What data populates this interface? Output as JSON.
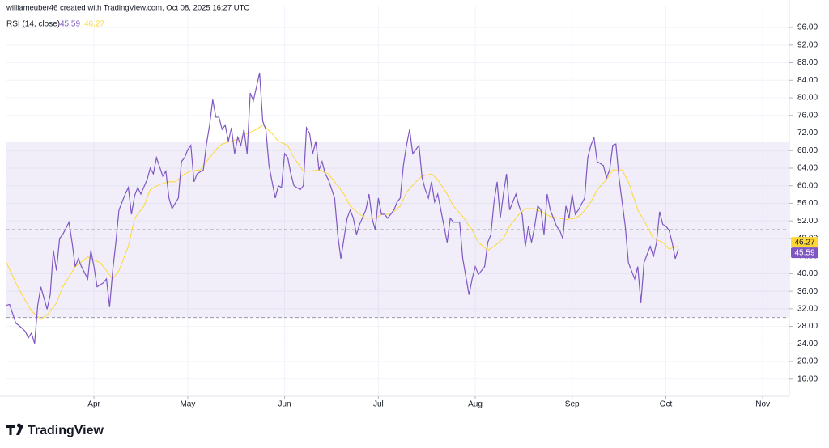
{
  "credit": "williameuber46 created with TradingView.com, Oct 08, 2025 16:27 UTC",
  "logo": "TradingView",
  "chart_data": {
    "type": "line",
    "xlim": [
      63,
      313.5
    ],
    "xticks": [
      {
        "value": 91,
        "label": "Apr"
      },
      {
        "value": 121,
        "label": "May"
      },
      {
        "value": 152,
        "label": "Jun"
      },
      {
        "value": 182,
        "label": "Jul"
      },
      {
        "value": 213,
        "label": "Aug"
      },
      {
        "value": 244,
        "label": "Sep"
      },
      {
        "value": 274,
        "label": "Oct"
      },
      {
        "value": 305,
        "label": "Nov"
      }
    ],
    "ylim": [
      12.1,
      100.8
    ],
    "yticks": [
      {
        "value": 16,
        "label": "16.00"
      },
      {
        "value": 20,
        "label": "20.00"
      },
      {
        "value": 24,
        "label": "24.00"
      },
      {
        "value": 28,
        "label": "28.00"
      },
      {
        "value": 32,
        "label": "32.00"
      },
      {
        "value": 36,
        "label": "36.00"
      },
      {
        "value": 40,
        "label": "40.00"
      },
      {
        "value": 44,
        "label": "44.00"
      },
      {
        "value": 48,
        "label": "48.00"
      },
      {
        "value": 52,
        "label": "52.00"
      },
      {
        "value": 56,
        "label": "56.00"
      },
      {
        "value": 60,
        "label": "60.00"
      },
      {
        "value": 64,
        "label": "64.00"
      },
      {
        "value": 68,
        "label": "68.00"
      },
      {
        "value": 72,
        "label": "72.00"
      },
      {
        "value": 76,
        "label": "76.00"
      },
      {
        "value": 80,
        "label": "80.00"
      },
      {
        "value": 84,
        "label": "84.00"
      },
      {
        "value": 88,
        "label": "88.00"
      },
      {
        "value": 92,
        "label": "92.00"
      },
      {
        "value": 96,
        "label": "96.00"
      }
    ],
    "grid": true,
    "hlines": [
      70,
      50,
      30
    ],
    "band_color": "rgba(126,87,194,0.1)",
    "series": [
      {
        "name": "RSI (14, close)",
        "color": "#7e57c2",
        "x": [
          63,
          64,
          66,
          67,
          69,
          70,
          71,
          72,
          73,
          74,
          76,
          77,
          78,
          79,
          80,
          81,
          83,
          84,
          85,
          86,
          87,
          89,
          90,
          91,
          92,
          94,
          95,
          96,
          97,
          98,
          99,
          101,
          102,
          103,
          104,
          105,
          106,
          108,
          109,
          110,
          111,
          113,
          114,
          115,
          116,
          118,
          119,
          120,
          121,
          122,
          123,
          124,
          126,
          127,
          128,
          129,
          130,
          131,
          132,
          133,
          134,
          135,
          136,
          137,
          138,
          139,
          140,
          141,
          142,
          144,
          145,
          146,
          147,
          149,
          150,
          151,
          152,
          153,
          154,
          155,
          157,
          158,
          159,
          160,
          161,
          162,
          163,
          164,
          165,
          166,
          168,
          169,
          170,
          171,
          172,
          173,
          174,
          175,
          176,
          178,
          179,
          180,
          181,
          182,
          183,
          184,
          185,
          187,
          188,
          189,
          190,
          191,
          192,
          193,
          195,
          196,
          197,
          198,
          199,
          200,
          201,
          203,
          204,
          205,
          206,
          207,
          208,
          209,
          211,
          212,
          213,
          214,
          216,
          217,
          218,
          219,
          220,
          221,
          222,
          223,
          224,
          226,
          227,
          228,
          229,
          230,
          231,
          232,
          233,
          234,
          235,
          236,
          237,
          239,
          240,
          241,
          242,
          243,
          244,
          245,
          246,
          248,
          249,
          250,
          251,
          252,
          254,
          255,
          256,
          257,
          258,
          259,
          261,
          262,
          264,
          265,
          266,
          267,
          268,
          269,
          270,
          271,
          272,
          273,
          274,
          275,
          276,
          277,
          278
        ],
        "values": [
          32.8,
          33.0,
          28.7,
          28.2,
          26.9,
          25.4,
          26.5,
          24.1,
          32.8,
          37.0,
          31.9,
          35.2,
          45.3,
          40.7,
          48.0,
          48.9,
          51.7,
          47.1,
          41.6,
          43.4,
          41.6,
          38.8,
          45.3,
          41.6,
          37.0,
          37.9,
          38.8,
          32.4,
          40.7,
          47.1,
          54.5,
          58.1,
          59.6,
          53.5,
          57.7,
          59.6,
          58.1,
          61.4,
          64.0,
          62.7,
          66.4,
          62.2,
          63.3,
          57.2,
          54.8,
          57.2,
          65.5,
          66.4,
          68.2,
          69.2,
          60.9,
          62.7,
          63.6,
          69.5,
          73.8,
          79.6,
          75.6,
          75.6,
          72.8,
          73.8,
          70.1,
          73.2,
          67.3,
          71.0,
          69.2,
          72.8,
          67.3,
          81.1,
          79.3,
          85.7,
          74.7,
          72.8,
          64.6,
          57.2,
          60.0,
          59.6,
          67.3,
          66.4,
          62.7,
          60.0,
          59.1,
          60.0,
          73.2,
          71.9,
          67.3,
          70.1,
          63.6,
          65.5,
          62.7,
          61.4,
          57.2,
          48.9,
          43.4,
          48.0,
          52.6,
          54.5,
          52.6,
          48.9,
          51.2,
          54.5,
          58.1,
          52.6,
          49.9,
          57.2,
          53.5,
          53.5,
          52.6,
          54.5,
          56.3,
          57.2,
          64.6,
          69.2,
          72.8,
          67.3,
          69.2,
          61.8,
          59.1,
          57.2,
          60.9,
          56.3,
          58.1,
          50.8,
          47.1,
          52.6,
          51.7,
          51.7,
          51.7,
          43.4,
          35.2,
          38.8,
          41.6,
          39.8,
          41.6,
          47.1,
          48.9,
          56.3,
          60.9,
          52.6,
          58.1,
          62.7,
          54.5,
          58.1,
          55.4,
          53.5,
          46.2,
          50.8,
          47.1,
          50.8,
          55.4,
          54.5,
          48.9,
          58.1,
          54.5,
          50.8,
          49.9,
          48.0,
          55.4,
          52.6,
          58.1,
          53.5,
          54.5,
          57.2,
          66.4,
          69.2,
          71.0,
          65.5,
          64.6,
          61.8,
          63.6,
          69.2,
          69.5,
          61.8,
          50.8,
          42.5,
          38.8,
          41.6,
          33.3,
          42.5,
          44.4,
          46.2,
          43.8,
          47.1,
          54.1,
          51.2,
          50.8,
          49.9,
          47.1,
          43.4,
          45.59
        ]
      },
      {
        "color": "#fdd835",
        "x": [
          63,
          66,
          69,
          71,
          74,
          76,
          79,
          81,
          85,
          89,
          93,
          97,
          99,
          102,
          104,
          107,
          109,
          112,
          115,
          117,
          120,
          122,
          125,
          127,
          130,
          132,
          135,
          137,
          140,
          143,
          145,
          148,
          150,
          153,
          155,
          158,
          160,
          163,
          166,
          168,
          171,
          173,
          176,
          178,
          181,
          183,
          186,
          189,
          191,
          194,
          196,
          199,
          201,
          204,
          206,
          209,
          212,
          214,
          217,
          219,
          222,
          224,
          227,
          229,
          232,
          234,
          237,
          240,
          242,
          245,
          247,
          250,
          252,
          255,
          257,
          260,
          262,
          265,
          268,
          270,
          273,
          275,
          278
        ],
        "values": [
          42.5,
          37.9,
          33.9,
          31.5,
          29.6,
          30.6,
          33.3,
          37.0,
          41.6,
          43.8,
          42.5,
          38.8,
          40.7,
          46.2,
          52.6,
          55.4,
          59.1,
          60.3,
          60.9,
          60.9,
          62.7,
          63.3,
          63.6,
          65.5,
          68.2,
          69.5,
          70.1,
          70.6,
          71.9,
          72.8,
          73.8,
          71.9,
          70.1,
          69.2,
          66.4,
          63.3,
          63.3,
          63.6,
          62.7,
          60.9,
          58.1,
          55.4,
          53.5,
          52.6,
          52.6,
          53.5,
          53.5,
          55.4,
          58.5,
          60.9,
          62.2,
          62.7,
          61.4,
          58.1,
          55.4,
          53.0,
          49.9,
          47.1,
          45.3,
          46.2,
          48.0,
          50.8,
          53.5,
          54.8,
          54.8,
          54.1,
          53.0,
          52.6,
          52.3,
          52.6,
          53.5,
          56.3,
          59.1,
          61.4,
          63.6,
          63.6,
          60.9,
          54.5,
          50.8,
          48.0,
          47.1,
          45.6,
          46.27
        ]
      }
    ]
  }
}
